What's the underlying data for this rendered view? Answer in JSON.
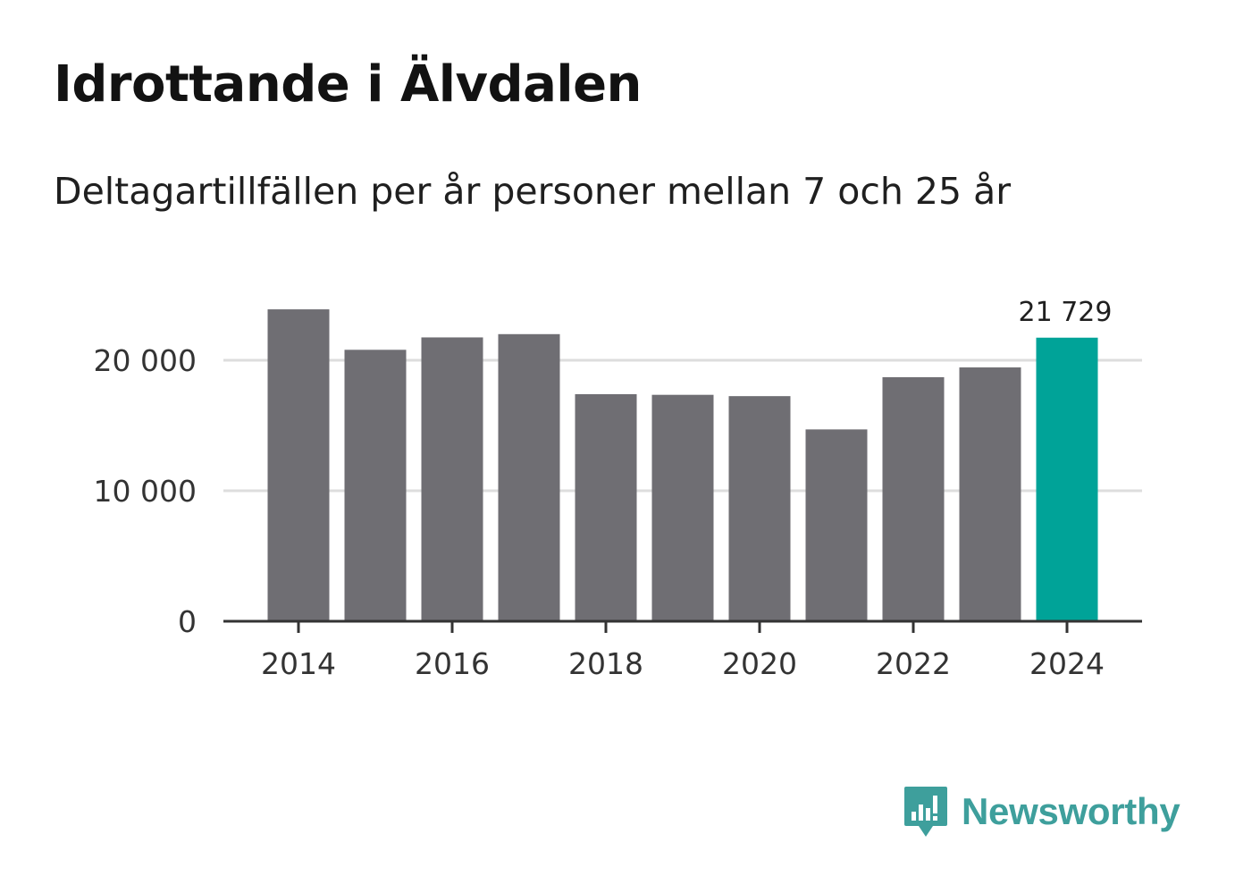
{
  "title": "Idrottande i Älvdalen",
  "subtitle": "Deltagartillfällen per år personer mellan 7 och 25 år",
  "brand": {
    "name": "Newsworthy",
    "color": "#3e9f9c",
    "icon": "bar-chart-speech-bubble-icon"
  },
  "chart_data": {
    "type": "bar",
    "title": "Idrottande i Älvdalen",
    "subtitle": "Deltagartillfällen per år personer mellan 7 och 25 år",
    "xlabel": "",
    "ylabel": "",
    "categories": [
      2014,
      2015,
      2016,
      2017,
      2018,
      2019,
      2020,
      2021,
      2022,
      2023,
      2024
    ],
    "values": [
      23900,
      20800,
      21750,
      22000,
      17400,
      17350,
      17250,
      14700,
      18700,
      19450,
      21729
    ],
    "ylim": [
      0,
      25000
    ],
    "yticks": [
      0,
      10000,
      20000
    ],
    "ytick_labels": [
      "0",
      "10 000",
      "20 000"
    ],
    "xticks": [
      2014,
      2016,
      2018,
      2020,
      2022,
      2024
    ],
    "xtick_labels": [
      "2014",
      "2016",
      "2018",
      "2020",
      "2022",
      "2024"
    ],
    "grid": true,
    "colors": {
      "default": "#6f6e73",
      "highlight": "#00a398",
      "grid": "#dddddd",
      "axis": "#333333"
    },
    "highlight_index": 10,
    "annotations": [
      {
        "index": 10,
        "text": "21 729"
      }
    ]
  }
}
